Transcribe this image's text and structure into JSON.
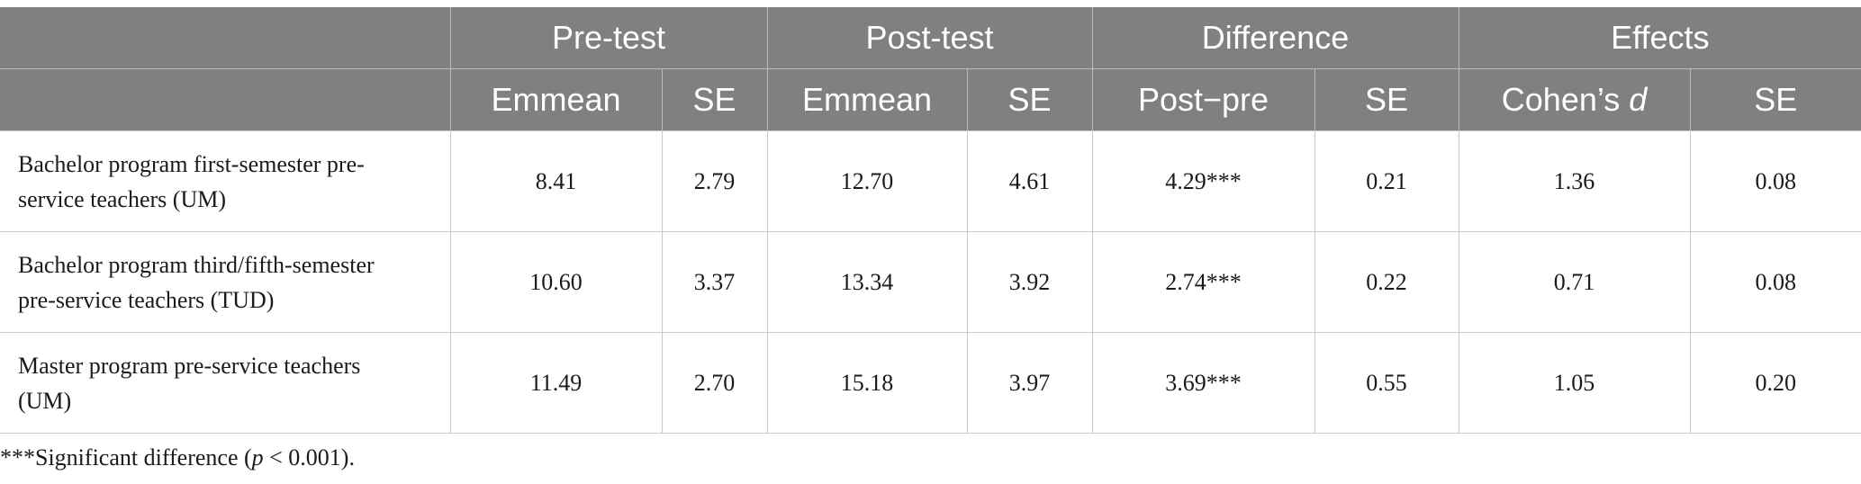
{
  "header": {
    "groups": [
      "Pre-test",
      "Post-test",
      "Difference",
      "Effects"
    ],
    "sub": {
      "pre_emmean": "Emmean",
      "pre_se": "SE",
      "post_emmean": "Emmean",
      "post_se": "SE",
      "diff_label": "Post−pre",
      "diff_se": "SE",
      "effect_prefix": "Cohen’s ",
      "effect_var": "d",
      "effect_se": "SE"
    }
  },
  "rows": [
    {
      "label_line1": "Bachelor program first-semester pre-",
      "label_line2": "service teachers (UM)",
      "pre_emmean": "8.41",
      "pre_se": "2.79",
      "post_emmean": "12.70",
      "post_se": "4.61",
      "diff": "4.29***",
      "diff_se": "0.21",
      "cohens_d": "1.36",
      "effect_se": "0.08"
    },
    {
      "label_line1": "Bachelor program third/fifth-semester",
      "label_line2": "pre-service teachers (TUD)",
      "pre_emmean": "10.60",
      "pre_se": "3.37",
      "post_emmean": "13.34",
      "post_se": "3.92",
      "diff": "2.74***",
      "diff_se": "0.22",
      "cohens_d": "0.71",
      "effect_se": "0.08"
    },
    {
      "label_line1": "Master program pre-service teachers",
      "label_line2": "(UM)",
      "pre_emmean": "11.49",
      "pre_se": "2.70",
      "post_emmean": "15.18",
      "post_se": "3.97",
      "diff": "3.69***",
      "diff_se": "0.55",
      "cohens_d": "1.05",
      "effect_se": "0.20"
    }
  ],
  "footnote": {
    "prefix": "***Significant difference (",
    "var": "p",
    "suffix": " < 0.001)."
  }
}
